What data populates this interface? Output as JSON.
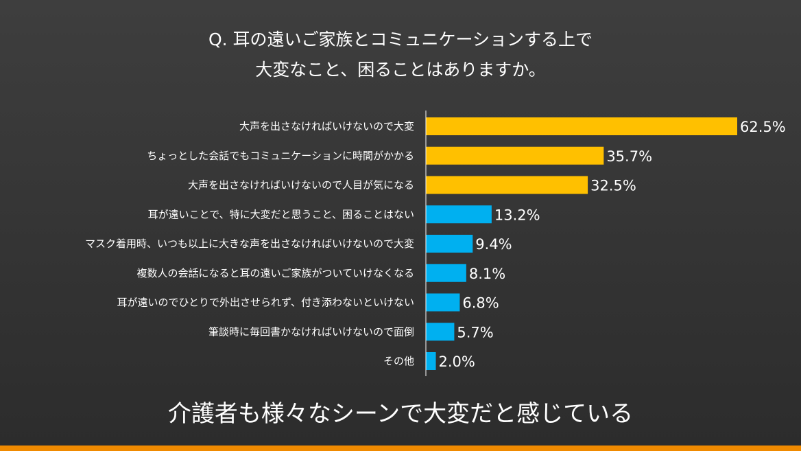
{
  "title": {
    "line1": "Q. 耳の遠いご家族とコミュニケーションする上で",
    "line2": "大変なこと、困ることはありますか。"
  },
  "chart_data": {
    "type": "bar",
    "orientation": "horizontal",
    "categories": [
      "大声を出さなければいけないので大変",
      "ちょっとした会話でもコミュニケーションに時間がかかる",
      "大声を出さなければいけないので人目が気になる",
      "耳が遠いことで、特に大変だと思うこと、困ることはない",
      "マスク着用時、いつも以上に大きな声を出さなければいけないので大変",
      "複数人の会話になると耳の遠いご家族がついていけなくなる",
      "耳が遠いのでひとりで外出させられず、付き添わないといけない",
      "筆談時に毎回書かなければいけないので面倒",
      "その他"
    ],
    "values": [
      62.5,
      35.7,
      32.5,
      13.2,
      9.4,
      8.1,
      6.8,
      5.7,
      2.0
    ],
    "value_labels": [
      "62.5%",
      "35.7%",
      "32.5%",
      "13.2%",
      "9.4%",
      "8.1%",
      "6.8%",
      "5.7%",
      "2.0%"
    ],
    "bar_colors": [
      "#ffc000",
      "#ffc000",
      "#ffc000",
      "#00b0f0",
      "#00b0f0",
      "#00b0f0",
      "#00b0f0",
      "#00b0f0",
      "#00b0f0"
    ],
    "xlim": [
      0,
      70
    ],
    "grid": false,
    "legend": "none"
  },
  "bottom_message": "介護者も様々なシーンで大変だと感じている",
  "colors": {
    "highlight": "#ffc000",
    "standard": "#00b0f0",
    "accent_strip": "#f08a00"
  }
}
